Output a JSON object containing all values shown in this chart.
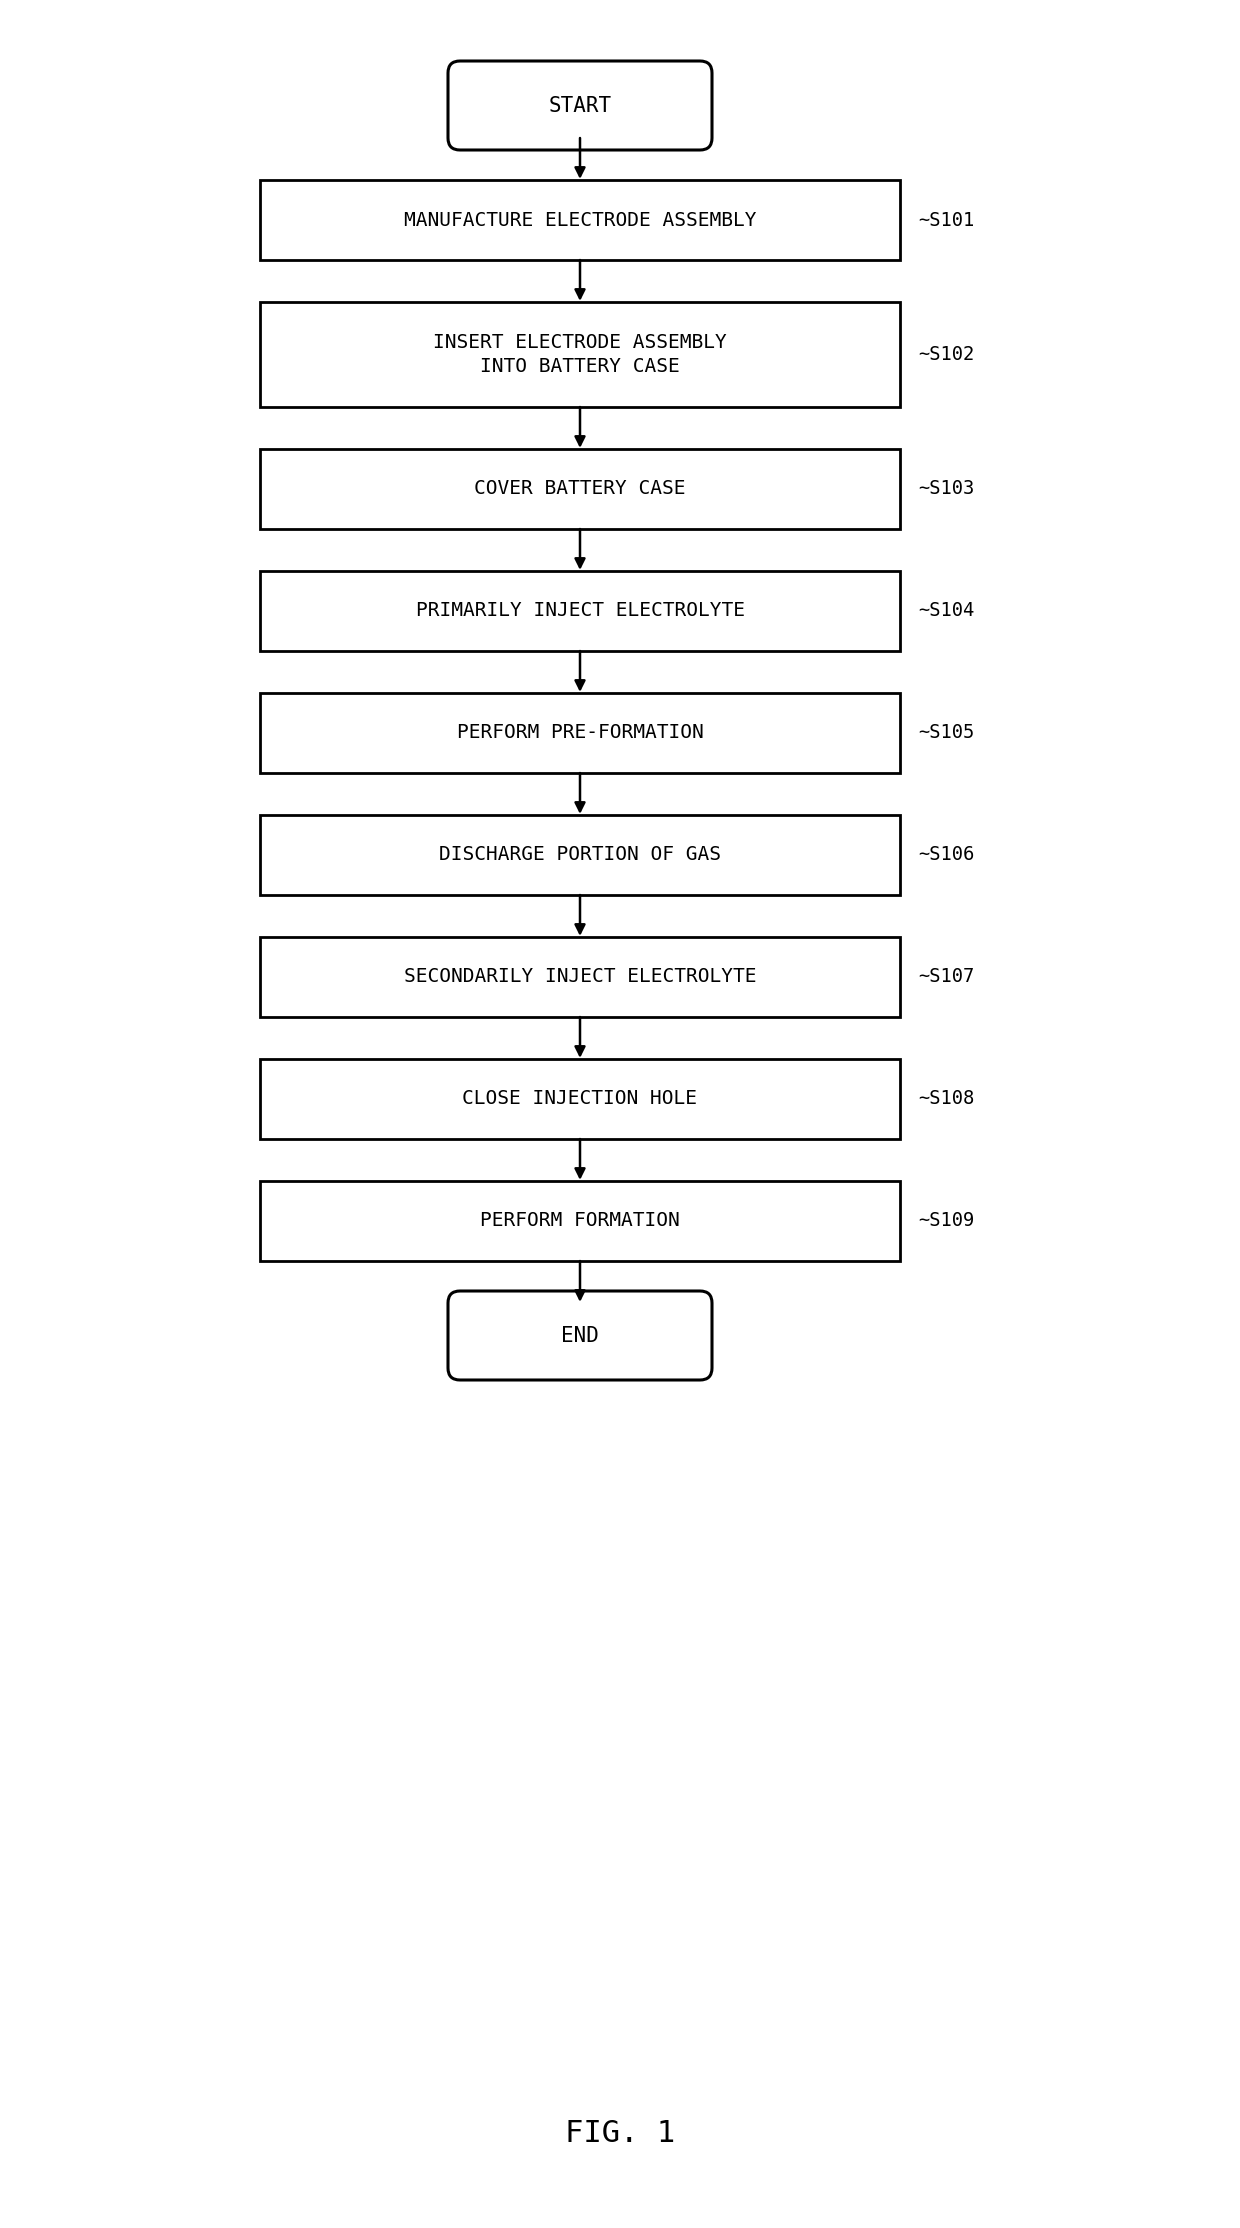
{
  "title": "FIG. 1",
  "background_color": "#ffffff",
  "steps": [
    {
      "label": "START",
      "type": "rounded",
      "ref": null
    },
    {
      "label": "MANUFACTURE ELECTRODE ASSEMBLY",
      "type": "rect",
      "ref": "S101"
    },
    {
      "label": "INSERT ELECTRODE ASSEMBLY\nINTO BATTERY CASE",
      "type": "rect",
      "ref": "S102"
    },
    {
      "label": "COVER BATTERY CASE",
      "type": "rect",
      "ref": "S103"
    },
    {
      "label": "PRIMARILY INJECT ELECTROLYTE",
      "type": "rect",
      "ref": "S104"
    },
    {
      "label": "PERFORM PRE-FORMATION",
      "type": "rect",
      "ref": "S105"
    },
    {
      "label": "DISCHARGE PORTION OF GAS",
      "type": "rect",
      "ref": "S106"
    },
    {
      "label": "SECONDARILY INJECT ELECTROLYTE",
      "type": "rect",
      "ref": "S107"
    },
    {
      "label": "CLOSE INJECTION HOLE",
      "type": "rect",
      "ref": "S108"
    },
    {
      "label": "PERFORM FORMATION",
      "type": "rect",
      "ref": "S109"
    },
    {
      "label": "END",
      "type": "rounded",
      "ref": null
    }
  ],
  "line_color": "#000000",
  "text_color": "#000000",
  "font_name": "DejaVu Sans Mono",
  "font_size_step": 14,
  "font_size_ref": 13.5,
  "font_size_title": 22
}
